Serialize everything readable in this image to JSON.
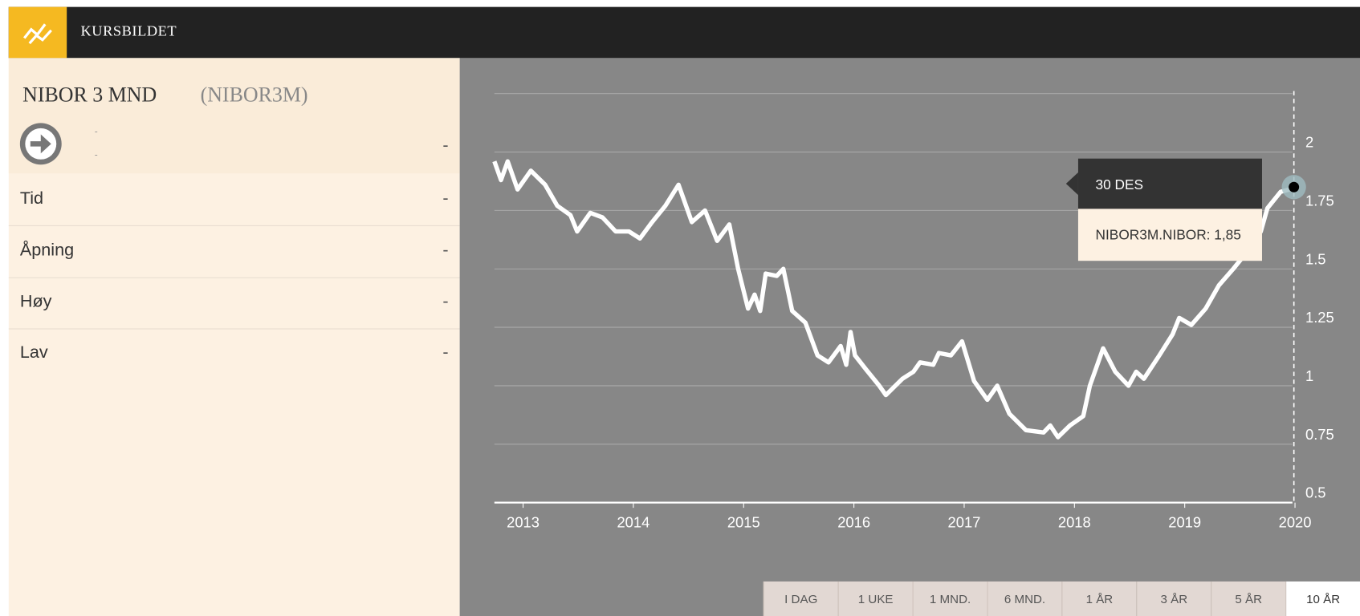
{
  "header": {
    "title": "KURSBILDET"
  },
  "instrument": {
    "name": "NIBOR 3 MND",
    "ticker": "(NIBOR3M)",
    "line1": "-",
    "line2": "-",
    "change": "-"
  },
  "details": {
    "rows": [
      [
        "Tid",
        "-"
      ],
      [
        "Åpning",
        "-"
      ],
      [
        "Høy",
        "-"
      ],
      [
        "Lav",
        "-"
      ]
    ]
  },
  "chart_data": {
    "type": "line",
    "color": "#ffffff",
    "x": [
      2012.74,
      2012.8,
      2012.86,
      2012.95,
      2013.07,
      2013.2,
      2013.31,
      2013.43,
      2013.49,
      2013.61,
      2013.72,
      2013.84,
      2013.96,
      2014.06,
      2014.17,
      2014.29,
      2014.41,
      2014.53,
      2014.65,
      2014.76,
      2014.87,
      2014.95,
      2015.04,
      2015.1,
      2015.15,
      2015.2,
      2015.3,
      2015.36,
      2015.44,
      2015.56,
      2015.67,
      2015.77,
      2015.88,
      2015.93,
      2015.97,
      2016.01,
      2016.11,
      2016.23,
      2016.29,
      2016.44,
      2016.54,
      2016.6,
      2016.72,
      2016.77,
      2016.88,
      2016.98,
      2017.09,
      2017.21,
      2017.3,
      2017.41,
      2017.56,
      2017.72,
      2017.78,
      2017.85,
      2017.96,
      2018.08,
      2018.14,
      2018.26,
      2018.37,
      2018.49,
      2018.56,
      2018.63,
      2018.77,
      2018.89,
      2018.95,
      2019.06,
      2019.19,
      2019.31,
      2019.44,
      2019.56,
      2019.69,
      2019.75,
      2019.87,
      2019.95,
      2019.99
    ],
    "values": [
      1.96,
      1.88,
      1.96,
      1.84,
      1.92,
      1.86,
      1.77,
      1.73,
      1.66,
      1.74,
      1.72,
      1.66,
      1.66,
      1.63,
      1.7,
      1.77,
      1.86,
      1.7,
      1.75,
      1.62,
      1.69,
      1.5,
      1.33,
      1.39,
      1.32,
      1.48,
      1.47,
      1.5,
      1.32,
      1.27,
      1.13,
      1.1,
      1.17,
      1.09,
      1.23,
      1.13,
      1.07,
      1.0,
      0.96,
      1.03,
      1.06,
      1.1,
      1.09,
      1.14,
      1.13,
      1.19,
      1.02,
      0.94,
      1.0,
      0.88,
      0.81,
      0.8,
      0.83,
      0.78,
      0.83,
      0.87,
      1.0,
      1.16,
      1.06,
      1.0,
      1.06,
      1.03,
      1.13,
      1.22,
      1.29,
      1.26,
      1.33,
      1.43,
      1.5,
      1.57,
      1.66,
      1.76,
      1.83,
      1.84,
      1.85
    ],
    "xlim": [
      2012.74,
      2020
    ],
    "xticks": [
      2013,
      2014,
      2015,
      2016,
      2017,
      2018,
      2019,
      2020
    ],
    "ylim": [
      0.5,
      2.25
    ],
    "yticks": [
      0.5,
      0.75,
      1,
      1.25,
      1.5,
      1.75,
      2
    ],
    "grid": true,
    "tooltip": {
      "title": "30 DES",
      "text": "NIBOR3M.NIBOR: 1,85"
    }
  },
  "range_buttons": [
    {
      "label": "I DAG"
    },
    {
      "label": "1 UKE"
    },
    {
      "label": "1 MND."
    },
    {
      "label": "6 MND."
    },
    {
      "label": "1 ÅR"
    },
    {
      "label": "3 ÅR"
    },
    {
      "label": "5 ÅR"
    },
    {
      "label": "10 ÅR",
      "selected": true
    }
  ]
}
